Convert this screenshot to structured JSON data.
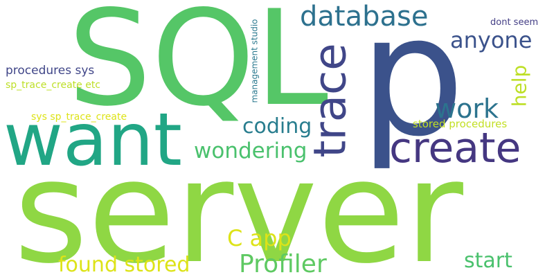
{
  "words": [
    {
      "text": "SQL",
      "color": "#55c667"
    },
    {
      "text": "p",
      "color": "#3b528b"
    },
    {
      "text": "server",
      "color": "#8fd744"
    },
    {
      "text": "want",
      "color": "#21a685"
    },
    {
      "text": "trace",
      "color": "#404688"
    },
    {
      "text": "create",
      "color": "#453781"
    },
    {
      "text": "database",
      "color": "#2d718e"
    },
    {
      "text": "anyone",
      "color": "#3b528b"
    },
    {
      "text": "help",
      "color": "#bddf26"
    },
    {
      "text": "work",
      "color": "#2c738e"
    },
    {
      "text": "coding",
      "color": "#287d8e"
    },
    {
      "text": "wondering",
      "color": "#4ac16d"
    },
    {
      "text": "Profiler",
      "color": "#5ec962"
    },
    {
      "text": "C app",
      "color": "#dde318"
    },
    {
      "text": "found stored",
      "color": "#dde318"
    },
    {
      "text": "start",
      "color": "#4ac16d"
    },
    {
      "text": "stored procedures",
      "color": "#c2df23"
    },
    {
      "text": "procedures sys",
      "color": "#404688"
    },
    {
      "text": "sp_trace_create etc",
      "color": "#bddf26"
    },
    {
      "text": "sys sp_trace_create",
      "color": "#dde318"
    },
    {
      "text": "management studio",
      "color": "#2a788e"
    },
    {
      "text": "dont seem",
      "color": "#433e85"
    }
  ]
}
